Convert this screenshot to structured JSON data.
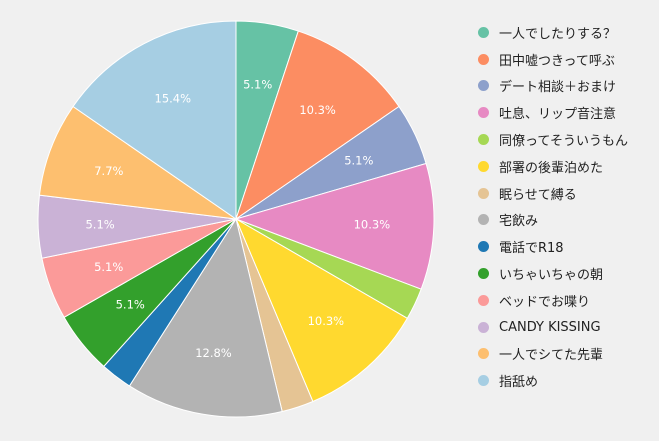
{
  "chart_data": {
    "type": "pie",
    "categories": [
      "一人でしたりする？",
      "田中嘘つきって呼ぶ",
      "デート相談＋おまけ",
      "吐息、リップ音注意",
      "同僚ってそういうもん",
      "部署の後輩泊めた",
      "眠らせて縛る",
      "宅飲み",
      "電話でR18",
      "いちゃいちゃの朝",
      "ベッドでお喋り",
      "CANDY KISSING",
      "一人でシてた先輩",
      "指舐め"
    ],
    "values": [
      5.1,
      10.3,
      5.1,
      10.3,
      2.6,
      10.3,
      2.6,
      12.8,
      2.6,
      5.1,
      5.1,
      5.1,
      7.7,
      15.4
    ],
    "labels": [
      "5.1%",
      "10.3%",
      "5.1%",
      "10.3%",
      "",
      "10.3%",
      "",
      "12.8%",
      "",
      "5.1%",
      "5.1%",
      "5.1%",
      "7.7%",
      "15.4%"
    ],
    "colors": [
      "#66c2a5",
      "#fc8d62",
      "#8da0cb",
      "#e78ac3",
      "#a6d854",
      "#ffd92f",
      "#e5c494",
      "#b3b3b3",
      "#1f78b4",
      "#33a02c",
      "#fb9a99",
      "#cab2d6",
      "#fdbf6f",
      "#a6cee3"
    ],
    "legend_position": "right"
  }
}
